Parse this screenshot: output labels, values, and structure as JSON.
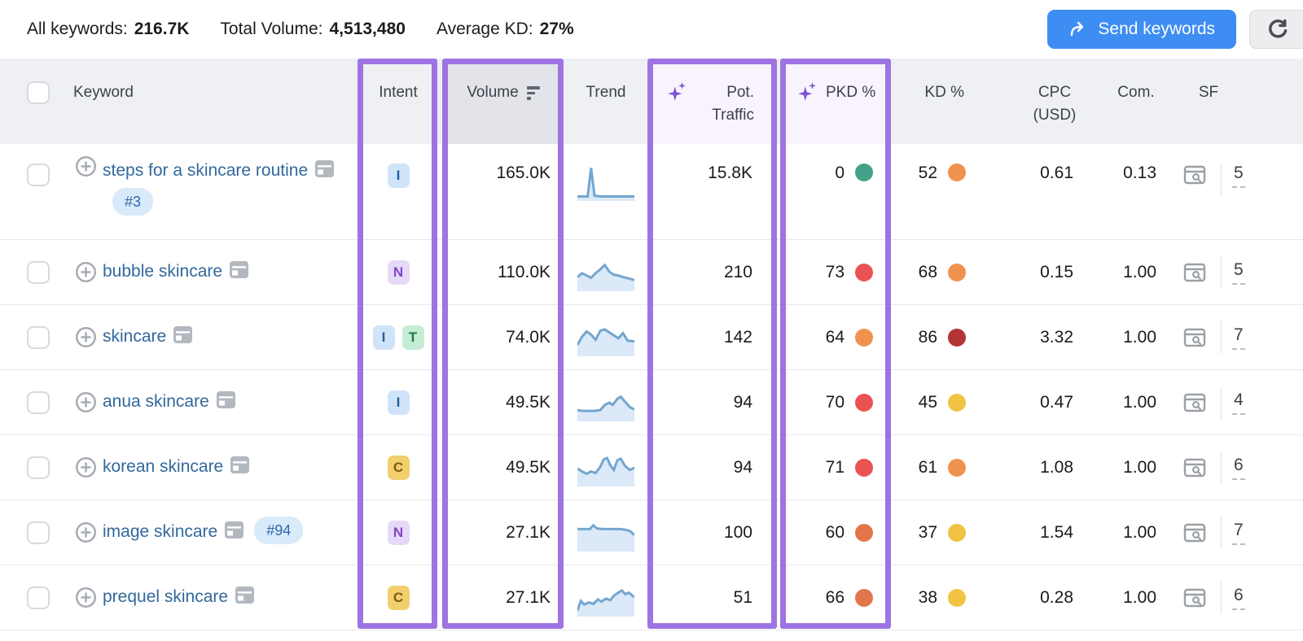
{
  "summary": {
    "all_keywords_label": "All keywords:",
    "all_keywords_value": "216.7K",
    "total_volume_label": "Total Volume:",
    "total_volume_value": "4,513,480",
    "average_kd_label": "Average KD:",
    "average_kd_value": "27%"
  },
  "actions": {
    "send_keywords_label": "Send keywords",
    "send_keywords_icon": "forward-arrow-icon",
    "refresh_icon": "refresh-icon"
  },
  "colors": {
    "highlight_purple": "#9e74e2",
    "button_blue": "#3e8df3",
    "link_blue": "#32689c",
    "sparkline_stroke": "#74a6cf",
    "sparkline_fill": "#dbe9f8",
    "green": "#43a287",
    "yellow": "#f1c343",
    "orange": "#f0924e",
    "orange_red": "#e2764b",
    "red": "#ea5253",
    "dark_red": "#b23434"
  },
  "table": {
    "headers": {
      "keyword": "Keyword",
      "intent": "Intent",
      "volume": "Volume",
      "trend": "Trend",
      "pot_traffic": "Pot. Traffic",
      "pkd": "PKD %",
      "kd": "KD %",
      "cpc": "CPC (USD)",
      "com": "Com.",
      "sf": "SF"
    },
    "rows": [
      {
        "keyword": "steps for a skincare routine",
        "rank": "#3",
        "two_line": true,
        "intents": [
          {
            "label": "I",
            "type": "informational"
          }
        ],
        "volume": "165.0K",
        "pot": "15.8K",
        "pkd": "0",
        "pkd_color": "green",
        "kd": "52",
        "kd_color": "orange",
        "cpc": "0.61",
        "com": "0.13",
        "sf": "5",
        "trend": [
          [
            0,
            88
          ],
          [
            18,
            88
          ],
          [
            24,
            12
          ],
          [
            30,
            86
          ],
          [
            40,
            88
          ],
          [
            100,
            88
          ]
        ]
      },
      {
        "keyword": "bubble skincare",
        "intents": [
          {
            "label": "N",
            "type": "navigational"
          }
        ],
        "volume": "110.0K",
        "pot": "210",
        "pkd": "73",
        "pkd_color": "red",
        "kd": "68",
        "kd_color": "orange",
        "cpc": "0.15",
        "com": "1.00",
        "sf": "5",
        "trend": [
          [
            0,
            62
          ],
          [
            8,
            52
          ],
          [
            16,
            58
          ],
          [
            24,
            64
          ],
          [
            32,
            52
          ],
          [
            40,
            42
          ],
          [
            48,
            30
          ],
          [
            56,
            48
          ],
          [
            64,
            56
          ],
          [
            72,
            58
          ],
          [
            80,
            62
          ],
          [
            90,
            66
          ],
          [
            100,
            70
          ]
        ]
      },
      {
        "keyword": "skincare",
        "intents": [
          {
            "label": "I",
            "type": "informational"
          },
          {
            "label": "T",
            "type": "transactional"
          }
        ],
        "volume": "74.0K",
        "pot": "142",
        "pkd": "64",
        "pkd_color": "orange",
        "kd": "86",
        "kd_color": "dark_red",
        "cpc": "3.32",
        "com": "1.00",
        "sf": "7",
        "trend": [
          [
            0,
            70
          ],
          [
            8,
            48
          ],
          [
            16,
            34
          ],
          [
            24,
            42
          ],
          [
            32,
            56
          ],
          [
            40,
            32
          ],
          [
            48,
            28
          ],
          [
            56,
            36
          ],
          [
            64,
            44
          ],
          [
            72,
            52
          ],
          [
            80,
            38
          ],
          [
            88,
            58
          ],
          [
            100,
            60
          ]
        ]
      },
      {
        "keyword": "anua skincare",
        "intents": [
          {
            "label": "I",
            "type": "informational"
          }
        ],
        "volume": "49.5K",
        "pot": "94",
        "pkd": "70",
        "pkd_color": "red",
        "kd": "45",
        "kd_color": "yellow",
        "cpc": "0.47",
        "com": "1.00",
        "sf": "4",
        "trend": [
          [
            0,
            70
          ],
          [
            10,
            72
          ],
          [
            20,
            72
          ],
          [
            30,
            72
          ],
          [
            40,
            70
          ],
          [
            48,
            56
          ],
          [
            56,
            50
          ],
          [
            62,
            56
          ],
          [
            70,
            40
          ],
          [
            76,
            34
          ],
          [
            84,
            48
          ],
          [
            92,
            62
          ],
          [
            100,
            68
          ]
        ]
      },
      {
        "keyword": "korean skincare",
        "intents": [
          {
            "label": "C",
            "type": "commercial"
          }
        ],
        "volume": "49.5K",
        "pot": "94",
        "pkd": "71",
        "pkd_color": "red",
        "kd": "61",
        "kd_color": "orange",
        "cpc": "1.08",
        "com": "1.00",
        "sf": "6",
        "trend": [
          [
            0,
            52
          ],
          [
            8,
            60
          ],
          [
            16,
            66
          ],
          [
            24,
            60
          ],
          [
            32,
            64
          ],
          [
            40,
            48
          ],
          [
            46,
            28
          ],
          [
            52,
            24
          ],
          [
            58,
            44
          ],
          [
            64,
            56
          ],
          [
            70,
            30
          ],
          [
            76,
            26
          ],
          [
            84,
            46
          ],
          [
            92,
            56
          ],
          [
            100,
            50
          ]
        ]
      },
      {
        "keyword": "image skincare",
        "rank": "#94",
        "intents": [
          {
            "label": "N",
            "type": "navigational"
          }
        ],
        "volume": "27.1K",
        "pot": "100",
        "pkd": "60",
        "pkd_color": "orange_red",
        "kd": "37",
        "kd_color": "yellow",
        "cpc": "1.54",
        "com": "1.00",
        "sf": "7",
        "trend": [
          [
            0,
            40
          ],
          [
            12,
            40
          ],
          [
            22,
            40
          ],
          [
            28,
            30
          ],
          [
            34,
            38
          ],
          [
            44,
            40
          ],
          [
            60,
            40
          ],
          [
            75,
            40
          ],
          [
            85,
            42
          ],
          [
            93,
            46
          ],
          [
            100,
            56
          ]
        ]
      },
      {
        "keyword": "prequel skincare",
        "intents": [
          {
            "label": "C",
            "type": "commercial"
          }
        ],
        "volume": "27.1K",
        "pot": "51",
        "pkd": "66",
        "pkd_color": "orange_red",
        "kd": "38",
        "kd_color": "yellow",
        "cpc": "0.28",
        "com": "1.00",
        "sf": "6",
        "trend": [
          [
            0,
            84
          ],
          [
            6,
            58
          ],
          [
            12,
            68
          ],
          [
            20,
            62
          ],
          [
            28,
            66
          ],
          [
            36,
            54
          ],
          [
            42,
            60
          ],
          [
            50,
            52
          ],
          [
            58,
            56
          ],
          [
            64,
            44
          ],
          [
            72,
            36
          ],
          [
            78,
            30
          ],
          [
            84,
            40
          ],
          [
            90,
            36
          ],
          [
            100,
            48
          ]
        ]
      }
    ]
  }
}
